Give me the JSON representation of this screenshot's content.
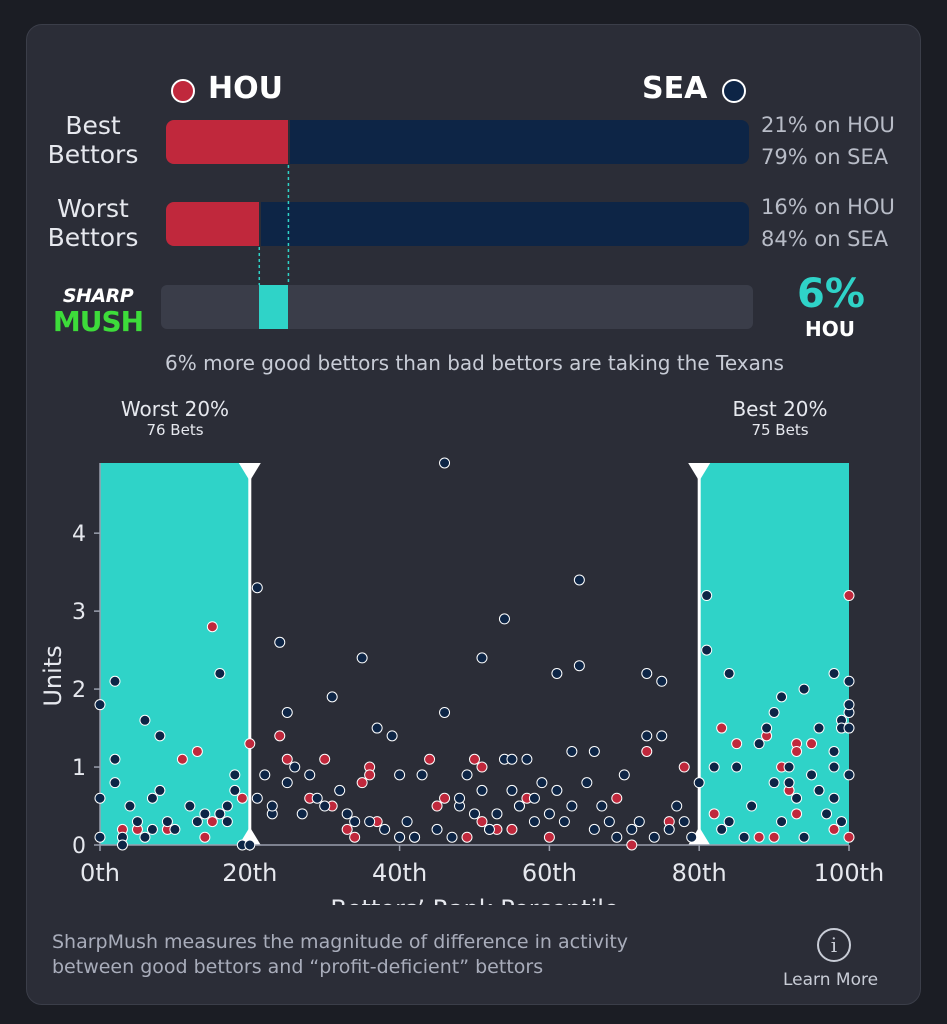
{
  "header": {
    "away": {
      "label": "HOU",
      "color": "#c0283c"
    },
    "home": {
      "label": "SEA",
      "color": "#0d2546"
    }
  },
  "rows": [
    {
      "label_1": "Best",
      "label_2": "Bettors",
      "hou_pct": 21,
      "sea_pct": 79,
      "hou_text": "21% on HOU",
      "sea_text": "79% on SEA"
    },
    {
      "label_1": "Worst",
      "label_2": "Bettors",
      "hou_pct": 16,
      "sea_pct": 84,
      "hou_text": "16% on HOU",
      "sea_text": "84% on SEA"
    }
  ],
  "sharpmush": {
    "logo_top": "SHARP",
    "logo_bottom": "MUSH",
    "value_pct": 6,
    "value_text": "6%",
    "team": "HOU",
    "accent": "#2fd3c8",
    "caption": "6% more good bettors than bad bettors are taking the Texans"
  },
  "chart_data": {
    "type": "scatter",
    "xlabel": "Bettors’ Rank Percentile",
    "ylabel": "Units",
    "xlim": [
      0,
      100
    ],
    "ylim": [
      0,
      4.9
    ],
    "xticks": [
      "0th",
      "20th",
      "40th",
      "60th",
      "80th",
      "100th"
    ],
    "yticks": [
      "0",
      "1",
      "2",
      "3",
      "4"
    ],
    "zones": [
      {
        "name": "Worst 20%",
        "sub": "76 Bets",
        "range": [
          0,
          20
        ]
      },
      {
        "name": "Best 20%",
        "sub": "75 Bets",
        "range": [
          80,
          100
        ]
      }
    ],
    "series": [
      {
        "color": "#c0283c",
        "points": [
          [
            3,
            0.2
          ],
          [
            5,
            0.2
          ],
          [
            9,
            0.2
          ],
          [
            11,
            1.1
          ],
          [
            13,
            1.2
          ],
          [
            14,
            0.1
          ],
          [
            15,
            2.8
          ],
          [
            15,
            0.3
          ],
          [
            19,
            0.6
          ],
          [
            20,
            1.3
          ],
          [
            24,
            1.4
          ],
          [
            25,
            1.1
          ],
          [
            28,
            0.6
          ],
          [
            30,
            1.1
          ],
          [
            31,
            0.5
          ],
          [
            33,
            0.2
          ],
          [
            34,
            0.1
          ],
          [
            35,
            0.8
          ],
          [
            36,
            1.0
          ],
          [
            36,
            0.9
          ],
          [
            37,
            0.3
          ],
          [
            40,
            0.1
          ],
          [
            42,
            0.1
          ],
          [
            44,
            1.1
          ],
          [
            45,
            0.5
          ],
          [
            46,
            0.6
          ],
          [
            49,
            0.1
          ],
          [
            50,
            1.1
          ],
          [
            51,
            0.3
          ],
          [
            51,
            1.0
          ],
          [
            52,
            0.2
          ],
          [
            53,
            0.2
          ],
          [
            55,
            0.2
          ],
          [
            56,
            0.5
          ],
          [
            57,
            0.6
          ],
          [
            60,
            0.1
          ],
          [
            69,
            0.6
          ],
          [
            71,
            0.0
          ],
          [
            73,
            1.2
          ],
          [
            76,
            0.3
          ],
          [
            78,
            1.0
          ],
          [
            82,
            0.4
          ],
          [
            83,
            1.5
          ],
          [
            85,
            1.3
          ],
          [
            88,
            0.1
          ],
          [
            89,
            1.4
          ],
          [
            90,
            0.1
          ],
          [
            91,
            1.0
          ],
          [
            92,
            0.7
          ],
          [
            93,
            1.3
          ],
          [
            93,
            1.2
          ],
          [
            93,
            0.4
          ],
          [
            95,
            1.3
          ],
          [
            98,
            0.2
          ],
          [
            100,
            3.2
          ],
          [
            100,
            0.1
          ]
        ]
      },
      {
        "color": "#0d2546",
        "points": [
          [
            0,
            1.8
          ],
          [
            0,
            0.6
          ],
          [
            0,
            0.1
          ],
          [
            2,
            2.1
          ],
          [
            2,
            1.1
          ],
          [
            2,
            0.8
          ],
          [
            3,
            0.1
          ],
          [
            3,
            0.0
          ],
          [
            4,
            0.5
          ],
          [
            5,
            0.3
          ],
          [
            6,
            0.1
          ],
          [
            6,
            1.6
          ],
          [
            7,
            0.2
          ],
          [
            7,
            0.6
          ],
          [
            8,
            0.7
          ],
          [
            8,
            1.4
          ],
          [
            9,
            0.3
          ],
          [
            10,
            0.2
          ],
          [
            12,
            0.5
          ],
          [
            13,
            0.3
          ],
          [
            14,
            0.4
          ],
          [
            16,
            0.4
          ],
          [
            16,
            2.2
          ],
          [
            17,
            0.5
          ],
          [
            17,
            0.3
          ],
          [
            18,
            0.7
          ],
          [
            18,
            0.9
          ],
          [
            19,
            0.0
          ],
          [
            20,
            0.0
          ],
          [
            21,
            3.3
          ],
          [
            21,
            0.6
          ],
          [
            22,
            0.9
          ],
          [
            23,
            0.4
          ],
          [
            23,
            0.5
          ],
          [
            24,
            2.6
          ],
          [
            25,
            1.7
          ],
          [
            25,
            0.8
          ],
          [
            26,
            1.0
          ],
          [
            27,
            0.4
          ],
          [
            28,
            0.9
          ],
          [
            29,
            0.6
          ],
          [
            30,
            0.5
          ],
          [
            31,
            1.9
          ],
          [
            32,
            0.7
          ],
          [
            33,
            0.4
          ],
          [
            34,
            0.3
          ],
          [
            35,
            2.4
          ],
          [
            36,
            0.3
          ],
          [
            37,
            1.5
          ],
          [
            38,
            0.2
          ],
          [
            39,
            1.4
          ],
          [
            40,
            0.1
          ],
          [
            40,
            0.9
          ],
          [
            41,
            0.3
          ],
          [
            42,
            0.1
          ],
          [
            43,
            0.9
          ],
          [
            45,
            0.2
          ],
          [
            46,
            4.9
          ],
          [
            46,
            1.7
          ],
          [
            47,
            0.1
          ],
          [
            48,
            0.5
          ],
          [
            48,
            0.6
          ],
          [
            49,
            0.9
          ],
          [
            50,
            0.4
          ],
          [
            51,
            2.4
          ],
          [
            51,
            0.7
          ],
          [
            52,
            0.2
          ],
          [
            53,
            0.4
          ],
          [
            54,
            2.9
          ],
          [
            54,
            1.1
          ],
          [
            55,
            1.1
          ],
          [
            55,
            0.7
          ],
          [
            56,
            0.5
          ],
          [
            57,
            1.1
          ],
          [
            58,
            0.3
          ],
          [
            58,
            0.6
          ],
          [
            59,
            0.8
          ],
          [
            60,
            0.4
          ],
          [
            61,
            2.2
          ],
          [
            61,
            0.7
          ],
          [
            62,
            0.3
          ],
          [
            63,
            1.2
          ],
          [
            63,
            0.5
          ],
          [
            64,
            2.3
          ],
          [
            64,
            3.4
          ],
          [
            65,
            0.8
          ],
          [
            66,
            1.2
          ],
          [
            66,
            0.2
          ],
          [
            67,
            0.5
          ],
          [
            68,
            0.3
          ],
          [
            69,
            0.1
          ],
          [
            70,
            0.9
          ],
          [
            71,
            0.2
          ],
          [
            72,
            0.3
          ],
          [
            73,
            2.2
          ],
          [
            73,
            1.4
          ],
          [
            74,
            0.1
          ],
          [
            75,
            1.4
          ],
          [
            75,
            2.1
          ],
          [
            76,
            0.2
          ],
          [
            77,
            0.5
          ],
          [
            78,
            0.3
          ],
          [
            79,
            0.1
          ],
          [
            80,
            0.8
          ],
          [
            81,
            2.5
          ],
          [
            81,
            3.2
          ],
          [
            82,
            1.0
          ],
          [
            83,
            0.2
          ],
          [
            84,
            2.2
          ],
          [
            84,
            0.3
          ],
          [
            85,
            1.0
          ],
          [
            86,
            0.1
          ],
          [
            87,
            0.5
          ],
          [
            88,
            1.3
          ],
          [
            89,
            1.5
          ],
          [
            90,
            0.8
          ],
          [
            90,
            1.7
          ],
          [
            91,
            1.9
          ],
          [
            91,
            0.3
          ],
          [
            92,
            1.0
          ],
          [
            92,
            0.8
          ],
          [
            93,
            0.6
          ],
          [
            94,
            2.0
          ],
          [
            94,
            0.1
          ],
          [
            95,
            0.9
          ],
          [
            96,
            0.7
          ],
          [
            96,
            1.5
          ],
          [
            97,
            0.4
          ],
          [
            98,
            1.0
          ],
          [
            98,
            1.2
          ],
          [
            98,
            2.2
          ],
          [
            98,
            0.6
          ],
          [
            99,
            1.6
          ],
          [
            99,
            1.5
          ],
          [
            99,
            0.3
          ],
          [
            100,
            1.7
          ],
          [
            100,
            1.8
          ],
          [
            100,
            1.5
          ],
          [
            100,
            2.1
          ],
          [
            100,
            0.9
          ]
        ]
      }
    ]
  },
  "footer": {
    "note_line1": "SharpMush measures the magnitude of difference in activity",
    "note_line2": "between good bettors and “profit-deficient” bettors",
    "learn_more": "Learn More",
    "info_glyph": "i"
  }
}
